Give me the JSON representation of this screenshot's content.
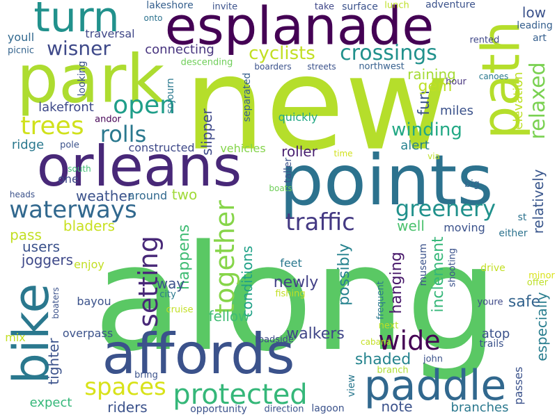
{
  "words": [
    {
      "text": "along",
      "color": "#5ac864"
    },
    {
      "text": "new",
      "color": "#b5de2b"
    },
    {
      "text": "points",
      "color": "#2c728e"
    },
    {
      "text": "park",
      "color": "#addc30"
    },
    {
      "text": "esplanade",
      "color": "#440154"
    },
    {
      "text": "affords",
      "color": "#3b528b"
    },
    {
      "text": "orleans",
      "color": "#482878"
    },
    {
      "text": "path",
      "color": "#b5de2b"
    },
    {
      "text": "bike",
      "color": "#2a788e"
    },
    {
      "text": "turn",
      "color": "#21918c"
    },
    {
      "text": "paddle",
      "color": "#31688e"
    },
    {
      "text": "protected",
      "color": "#35b779"
    },
    {
      "text": "waterways",
      "color": "#31688e"
    },
    {
      "text": "trees",
      "color": "#d0e11c"
    },
    {
      "text": "spaces",
      "color": "#d8e219"
    },
    {
      "text": "setting",
      "color": "#482878"
    },
    {
      "text": "together",
      "color": "#86d549"
    },
    {
      "text": "greenery",
      "color": "#21918c"
    },
    {
      "text": "traffic",
      "color": "#443983"
    },
    {
      "text": "wide",
      "color": "#440154"
    },
    {
      "text": "crossings",
      "color": "#21918c"
    },
    {
      "text": "cyclists",
      "color": "#c2df23"
    },
    {
      "text": "wisner",
      "color": "#3e4989"
    },
    {
      "text": "open",
      "color": "#1f9e89"
    },
    {
      "text": "rolls",
      "color": "#2a788e"
    },
    {
      "text": "winding",
      "color": "#22a884"
    },
    {
      "text": "relaxed",
      "color": "#7ad151"
    },
    {
      "text": "relatively",
      "color": "#39568c"
    },
    {
      "text": "inclement",
      "color": "#35b779"
    },
    {
      "text": "possibly",
      "color": "#26828e"
    },
    {
      "text": "hanging",
      "color": "#48186a"
    },
    {
      "text": "conditions",
      "color": "#1fa187"
    },
    {
      "text": "happens",
      "color": "#3fbc73"
    },
    {
      "text": "especially",
      "color": "#287d8e"
    },
    {
      "text": "tighter",
      "color": "#3b528b"
    },
    {
      "text": "newly",
      "color": "#424086"
    },
    {
      "text": "walkers",
      "color": "#404688"
    },
    {
      "text": "shaded",
      "color": "#25848e"
    },
    {
      "text": "safe",
      "color": "#33638d"
    },
    {
      "text": "fun",
      "color": "#3b528b"
    },
    {
      "text": "gem",
      "color": "#bddf26"
    },
    {
      "text": "raining",
      "color": "#a5db36"
    },
    {
      "text": "elevation",
      "color": "#bddf26"
    },
    {
      "text": "low",
      "color": "#3b528b"
    },
    {
      "text": "leading",
      "color": "#355f8d"
    },
    {
      "text": "art",
      "color": "#355f8d"
    },
    {
      "text": "connecting",
      "color": "#46337e"
    },
    {
      "text": "lakefront",
      "color": "#3e4989"
    },
    {
      "text": "miles",
      "color": "#3b528b"
    },
    {
      "text": "alert",
      "color": "#26828e"
    },
    {
      "text": "roller",
      "color": "#481f70"
    },
    {
      "text": "constructed",
      "color": "#3e4989"
    },
    {
      "text": "vehicles",
      "color": "#84d44b"
    },
    {
      "text": "slipper",
      "color": "#3e4989"
    },
    {
      "text": "separated",
      "color": "#355f8d"
    },
    {
      "text": "quickly",
      "color": "#22a884"
    },
    {
      "text": "well",
      "color": "#4ac16d"
    },
    {
      "text": "moving",
      "color": "#3b528b"
    },
    {
      "text": "either",
      "color": "#2c728e"
    },
    {
      "text": "st",
      "color": "#2c728e"
    },
    {
      "text": "big",
      "color": "#33638d"
    },
    {
      "text": "via",
      "color": "#bddf26"
    },
    {
      "text": "canoes",
      "color": "#2a788e"
    },
    {
      "text": "hour",
      "color": "#46337e"
    },
    {
      "text": "rented",
      "color": "#3f4788"
    },
    {
      "text": "adventure",
      "color": "#3b528b"
    },
    {
      "text": "lunch",
      "color": "#bddf26"
    },
    {
      "text": "surface",
      "color": "#3b528b"
    },
    {
      "text": "take",
      "color": "#3f4788"
    },
    {
      "text": "invite",
      "color": "#3b528b"
    },
    {
      "text": "lakeshore",
      "color": "#355f8d"
    },
    {
      "text": "onto",
      "color": "#2c728e"
    },
    {
      "text": "traversal",
      "color": "#3f4788"
    },
    {
      "text": "youll",
      "color": "#31688e"
    },
    {
      "text": "picnic",
      "color": "#33638d"
    },
    {
      "text": "looking",
      "color": "#3b528b"
    },
    {
      "text": "sojourn",
      "color": "#2a788e"
    },
    {
      "text": "descending",
      "color": "#6ece58"
    },
    {
      "text": "boarders",
      "color": "#3b528b"
    },
    {
      "text": "streets",
      "color": "#3b528b"
    },
    {
      "text": "northwest",
      "color": "#355f8d"
    },
    {
      "text": "andor",
      "color": "#440154"
    },
    {
      "text": "ridge",
      "color": "#2a788e"
    },
    {
      "text": "pole",
      "color": "#3b528b"
    },
    {
      "text": "south",
      "color": "#3fbc73"
    },
    {
      "text": "one",
      "color": "#3e4989"
    },
    {
      "text": "weather",
      "color": "#3b528b"
    },
    {
      "text": "around",
      "color": "#31688e"
    },
    {
      "text": "two",
      "color": "#a0da39"
    },
    {
      "text": "heads",
      "color": "#3b528b"
    },
    {
      "text": "bladers",
      "color": "#c8e020"
    },
    {
      "text": "pass",
      "color": "#c2df23"
    },
    {
      "text": "users",
      "color": "#3b528b"
    },
    {
      "text": "joggers",
      "color": "#3e4989"
    },
    {
      "text": "enjoy",
      "color": "#c2df23"
    },
    {
      "text": "way",
      "color": "#3b528b"
    },
    {
      "text": "fellow",
      "color": "#3fbc73"
    },
    {
      "text": "feet",
      "color": "#2a788e"
    },
    {
      "text": "boats",
      "color": "#6ece58"
    },
    {
      "text": "taller",
      "color": "#3b528b"
    },
    {
      "text": "time",
      "color": "#d0e11c"
    },
    {
      "text": "museum",
      "color": "#3b528b"
    },
    {
      "text": "shooting",
      "color": "#3b528b"
    },
    {
      "text": "drive",
      "color": "#c2df23"
    },
    {
      "text": "minor",
      "color": "#d8e219"
    },
    {
      "text": "offer",
      "color": "#bddf26"
    },
    {
      "text": "youre",
      "color": "#3e4989"
    },
    {
      "text": "frequent",
      "color": "#2a788e"
    },
    {
      "text": "next",
      "color": "#bddf26"
    },
    {
      "text": "cabana",
      "color": "#c2df23"
    },
    {
      "text": "atop",
      "color": "#3b528b"
    },
    {
      "text": "trails",
      "color": "#3b528b"
    },
    {
      "text": "branch",
      "color": "#addc30"
    },
    {
      "text": "john",
      "color": "#3b528b"
    },
    {
      "text": "passes",
      "color": "#3b528b"
    },
    {
      "text": "branches",
      "color": "#2a788e"
    },
    {
      "text": "note",
      "color": "#3b528b"
    },
    {
      "text": "view",
      "color": "#2a788e"
    },
    {
      "text": "lagoon",
      "color": "#3b528b"
    },
    {
      "text": "direction",
      "color": "#3b528b"
    },
    {
      "text": "opportunity",
      "color": "#3b528b"
    },
    {
      "text": "riders",
      "color": "#3b528b"
    },
    {
      "text": "expect",
      "color": "#35b779"
    },
    {
      "text": "mix",
      "color": "#c2df23"
    },
    {
      "text": "overpass",
      "color": "#3b528b"
    },
    {
      "text": "roadside",
      "color": "#3e4989"
    },
    {
      "text": "bayou",
      "color": "#3b528b"
    },
    {
      "text": "city",
      "color": "#2a788e"
    },
    {
      "text": "cruise",
      "color": "#c2df23"
    },
    {
      "text": "fishing",
      "color": "#c2df23"
    },
    {
      "text": "boaters",
      "color": "#3b528b"
    },
    {
      "text": "bring",
      "color": "#3b528b"
    }
  ]
}
